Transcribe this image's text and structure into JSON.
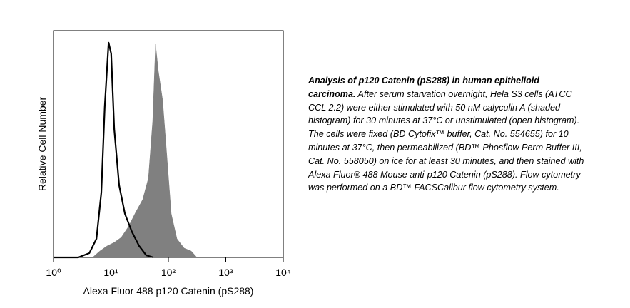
{
  "chart_data": {
    "type": "histogram",
    "xlabel": "Alexa Fluor 488 p120 Catenin (pS288)",
    "ylabel": "Relative Cell Number",
    "xscale": "log",
    "xlim": [
      1,
      10000
    ],
    "ylim": [
      0,
      100
    ],
    "xticks": [
      {
        "value": 1,
        "label": "10⁰"
      },
      {
        "value": 10,
        "label": "10¹"
      },
      {
        "value": 100,
        "label": "10²"
      },
      {
        "value": 1000,
        "label": "10³"
      },
      {
        "value": 10000,
        "label": "10⁴"
      }
    ],
    "series": [
      {
        "name": "shaded",
        "color": "#808080",
        "filled": true,
        "x": [
          4.8,
          6.4,
          8.5,
          11.4,
          15.1,
          20.1,
          26.8,
          35.7,
          44.9,
          53.3,
          59.7,
          67,
          79.4,
          94.4,
          112,
          141,
          188,
          250,
          314
        ],
        "values": [
          0,
          2.8,
          5,
          6.6,
          8.8,
          13.5,
          19.8,
          25.5,
          34.9,
          60,
          94,
          82,
          69.5,
          44.3,
          19.2,
          8.2,
          4.1,
          2.8,
          0
        ]
      },
      {
        "name": "open",
        "color": "#000000",
        "filled": false,
        "x": [
          1,
          2.7,
          4.2,
          5.6,
          6.8,
          7.8,
          9.1,
          10.1,
          11.4,
          13.9,
          17.5,
          23.2,
          31,
          41.2,
          54.8
        ],
        "values": [
          0,
          0,
          1.9,
          8.2,
          28.6,
          66.4,
          94.7,
          89.9,
          56.6,
          31.8,
          19.2,
          11.3,
          5,
          0.9,
          0
        ]
      }
    ]
  },
  "caption": {
    "heading": "Analysis of p120 Catenin (pS288) in human epithelioid carcinoma.",
    "body": "After serum starvation overnight, Hela S3 cells (ATCC CCL 2.2) were either stimulated with 50 nM calyculin A (shaded histogram) for 30 minutes at 37°C or unstimulated (open histogram).  The cells were fixed (BD Cytofix™ buffer, Cat. No. 554655) for 10 minutes at 37°C, then permeabilized (BD™ Phosflow Perm Buffer III, Cat. No. 558050) on ice for at least 30 minutes, and then stained with Alexa Fluor® 488 Mouse anti-p120 Catenin (pS288).  Flow cytometry was performed on a BD™ FACSCalibur flow cytometry system."
  }
}
